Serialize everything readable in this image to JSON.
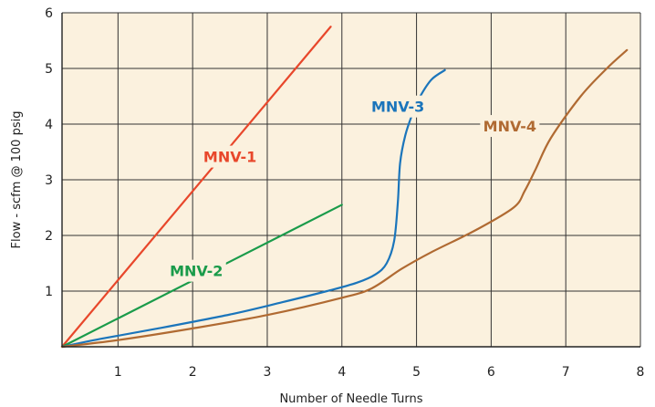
{
  "chart_data": {
    "type": "line",
    "xlabel": "Number of Needle Turns",
    "ylabel": "Flow - scfm @ 100 psig",
    "xlim": [
      0.25,
      8
    ],
    "ylim": [
      0,
      6
    ],
    "x_ticks": [
      1,
      2,
      3,
      4,
      5,
      6,
      7,
      8
    ],
    "y_ticks": [
      1,
      2,
      3,
      4,
      5,
      6
    ],
    "grid": true,
    "background_color": "#fbf1de",
    "series": [
      {
        "name": "MNV-1",
        "color": "#e8472b",
        "points": [
          [
            0.25,
            0.0
          ],
          [
            3.85,
            5.75
          ]
        ]
      },
      {
        "name": "MNV-2",
        "color": "#1a9b4a",
        "points": [
          [
            0.25,
            0.0
          ],
          [
            4.0,
            2.55
          ]
        ]
      },
      {
        "name": "MNV-3",
        "color": "#1b75bb",
        "points": [
          [
            0.25,
            0.0
          ],
          [
            0.8,
            0.15
          ],
          [
            1.5,
            0.32
          ],
          [
            2.5,
            0.58
          ],
          [
            3.2,
            0.8
          ],
          [
            3.8,
            1.0
          ],
          [
            4.2,
            1.15
          ],
          [
            4.45,
            1.3
          ],
          [
            4.6,
            1.5
          ],
          [
            4.7,
            1.9
          ],
          [
            4.75,
            2.6
          ],
          [
            4.78,
            3.3
          ],
          [
            4.85,
            3.8
          ],
          [
            4.95,
            4.2
          ],
          [
            5.05,
            4.5
          ],
          [
            5.2,
            4.8
          ],
          [
            5.38,
            4.97
          ]
        ]
      },
      {
        "name": "MNV-4",
        "color": "#b06a32",
        "points": [
          [
            0.25,
            0.0
          ],
          [
            1.0,
            0.12
          ],
          [
            2.0,
            0.33
          ],
          [
            3.0,
            0.57
          ],
          [
            4.0,
            0.88
          ],
          [
            4.4,
            1.05
          ],
          [
            4.8,
            1.4
          ],
          [
            5.2,
            1.7
          ],
          [
            5.8,
            2.1
          ],
          [
            6.3,
            2.5
          ],
          [
            6.45,
            2.8
          ],
          [
            6.6,
            3.2
          ],
          [
            6.8,
            3.75
          ],
          [
            7.2,
            4.5
          ],
          [
            7.55,
            5.0
          ],
          [
            7.82,
            5.33
          ]
        ]
      }
    ],
    "annotations": [
      {
        "text": "MNV-1",
        "x": 2.5,
        "y": 3.4,
        "color": "#e8472b"
      },
      {
        "text": "MNV-2",
        "x": 2.05,
        "y": 1.35,
        "color": "#1a9b4a"
      },
      {
        "text": "MNV-3",
        "x": 4.75,
        "y": 4.3,
        "color": "#1b75bb"
      },
      {
        "text": "MNV-4",
        "x": 6.25,
        "y": 3.95,
        "color": "#b06a32"
      }
    ]
  }
}
